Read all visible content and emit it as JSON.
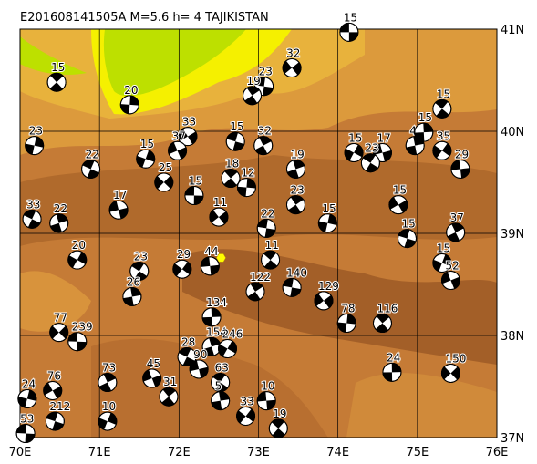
{
  "header": {
    "title": "E201608141505A  M=5.6  h=   4 TAJIKISTAN"
  },
  "map": {
    "xlim": [
      70,
      76
    ],
    "ylim": [
      37,
      41
    ],
    "xticks": [
      {
        "value": 70,
        "label": "70E"
      },
      {
        "value": 71,
        "label": "71E"
      },
      {
        "value": 72,
        "label": "72E"
      },
      {
        "value": 73,
        "label": "73E"
      },
      {
        "value": 74,
        "label": "74E"
      },
      {
        "value": 75,
        "label": "75E"
      },
      {
        "value": 76,
        "label": "76E"
      }
    ],
    "yticks": [
      {
        "value": 37,
        "label": "37N"
      },
      {
        "value": 38,
        "label": "38N"
      },
      {
        "value": 39,
        "label": "39N"
      },
      {
        "value": 40,
        "label": "40N"
      },
      {
        "value": 41,
        "label": "41N"
      }
    ],
    "epicenter": {
      "lon": 72.53,
      "lat": 38.76
    },
    "events": [
      {
        "lon": 74.14,
        "lat": 40.97,
        "label": "15"
      },
      {
        "lon": 70.46,
        "lat": 40.48,
        "label": "15"
      },
      {
        "lon": 71.38,
        "lat": 40.26,
        "label": "20"
      },
      {
        "lon": 73.42,
        "lat": 40.62,
        "label": "32"
      },
      {
        "lon": 73.07,
        "lat": 40.44,
        "label": "23"
      },
      {
        "lon": 72.92,
        "lat": 40.35,
        "label": "19"
      },
      {
        "lon": 70.18,
        "lat": 39.86,
        "label": "23"
      },
      {
        "lon": 72.11,
        "lat": 39.95,
        "label": "33"
      },
      {
        "lon": 72.71,
        "lat": 39.9,
        "label": "15"
      },
      {
        "lon": 73.06,
        "lat": 39.86,
        "label": "32"
      },
      {
        "lon": 71.58,
        "lat": 39.73,
        "label": "15"
      },
      {
        "lon": 71.98,
        "lat": 39.81,
        "label": "37"
      },
      {
        "lon": 70.89,
        "lat": 39.63,
        "label": "22"
      },
      {
        "lon": 73.47,
        "lat": 39.63,
        "label": "19"
      },
      {
        "lon": 74.2,
        "lat": 39.79,
        "label": "15"
      },
      {
        "lon": 74.56,
        "lat": 39.79,
        "label": "17"
      },
      {
        "lon": 74.41,
        "lat": 39.69,
        "label": "23"
      },
      {
        "lon": 74.97,
        "lat": 39.86,
        "label": "47"
      },
      {
        "lon": 75.31,
        "lat": 39.81,
        "label": "35"
      },
      {
        "lon": 75.54,
        "lat": 39.63,
        "label": "29"
      },
      {
        "lon": 75.31,
        "lat": 40.22,
        "label": "15"
      },
      {
        "lon": 75.08,
        "lat": 39.99,
        "label": "15"
      },
      {
        "lon": 71.81,
        "lat": 39.5,
        "label": "25"
      },
      {
        "lon": 72.19,
        "lat": 39.37,
        "label": "15"
      },
      {
        "lon": 72.65,
        "lat": 39.54,
        "label": "18"
      },
      {
        "lon": 72.85,
        "lat": 39.45,
        "label": "12"
      },
      {
        "lon": 72.5,
        "lat": 39.16,
        "label": "11"
      },
      {
        "lon": 73.1,
        "lat": 39.05,
        "label": "22"
      },
      {
        "lon": 73.47,
        "lat": 39.28,
        "label": "23"
      },
      {
        "lon": 73.87,
        "lat": 39.1,
        "label": "15"
      },
      {
        "lon": 74.76,
        "lat": 39.28,
        "label": "15"
      },
      {
        "lon": 74.87,
        "lat": 38.95,
        "label": "15"
      },
      {
        "lon": 75.48,
        "lat": 39.01,
        "label": "37"
      },
      {
        "lon": 75.31,
        "lat": 38.71,
        "label": "15"
      },
      {
        "lon": 75.42,
        "lat": 38.54,
        "label": "52"
      },
      {
        "lon": 70.15,
        "lat": 39.14,
        "label": "33"
      },
      {
        "lon": 70.49,
        "lat": 39.1,
        "label": "22"
      },
      {
        "lon": 70.72,
        "lat": 38.74,
        "label": "20"
      },
      {
        "lon": 71.24,
        "lat": 39.23,
        "label": "17"
      },
      {
        "lon": 71.5,
        "lat": 38.63,
        "label": "23"
      },
      {
        "lon": 71.41,
        "lat": 38.38,
        "label": "26"
      },
      {
        "lon": 72.04,
        "lat": 38.65,
        "label": "29"
      },
      {
        "lon": 72.39,
        "lat": 38.68,
        "label": "44"
      },
      {
        "lon": 73.15,
        "lat": 38.74,
        "label": "11"
      },
      {
        "lon": 72.41,
        "lat": 38.18,
        "label": "134"
      },
      {
        "lon": 70.49,
        "lat": 38.03,
        "label": "77"
      },
      {
        "lon": 70.72,
        "lat": 37.94,
        "label": "239"
      },
      {
        "lon": 74.56,
        "lat": 38.12,
        "label": "116"
      },
      {
        "lon": 74.11,
        "lat": 38.12,
        "label": "78"
      },
      {
        "lon": 73.82,
        "lat": 38.34,
        "label": "129"
      },
      {
        "lon": 73.42,
        "lat": 38.47,
        "label": "140"
      },
      {
        "lon": 72.96,
        "lat": 38.43,
        "label": "122"
      },
      {
        "lon": 70.09,
        "lat": 37.38,
        "label": "24"
      },
      {
        "lon": 70.41,
        "lat": 37.46,
        "label": "76"
      },
      {
        "lon": 70.44,
        "lat": 37.16,
        "label": "212"
      },
      {
        "lon": 71.1,
        "lat": 37.54,
        "label": "73"
      },
      {
        "lon": 71.1,
        "lat": 37.16,
        "label": "10"
      },
      {
        "lon": 71.66,
        "lat": 37.58,
        "label": "45"
      },
      {
        "lon": 72.1,
        "lat": 37.79,
        "label": "28"
      },
      {
        "lon": 72.41,
        "lat": 37.89,
        "label": "154"
      },
      {
        "lon": 72.61,
        "lat": 37.87,
        "label": "246"
      },
      {
        "lon": 72.25,
        "lat": 37.67,
        "label": "90"
      },
      {
        "lon": 72.52,
        "lat": 37.54,
        "label": "63"
      },
      {
        "lon": 72.52,
        "lat": 37.36,
        "label": "5"
      },
      {
        "lon": 72.84,
        "lat": 37.21,
        "label": "33"
      },
      {
        "lon": 73.1,
        "lat": 37.36,
        "label": "10"
      },
      {
        "lon": 73.25,
        "lat": 37.09,
        "label": "19"
      },
      {
        "lon": 74.68,
        "lat": 37.64,
        "label": "24"
      },
      {
        "lon": 75.42,
        "lat": 37.63,
        "label": "150"
      },
      {
        "lon": 70.07,
        "lat": 37.04,
        "label": "53"
      },
      {
        "lon": 71.87,
        "lat": 37.4,
        "label": "31"
      }
    ]
  }
}
